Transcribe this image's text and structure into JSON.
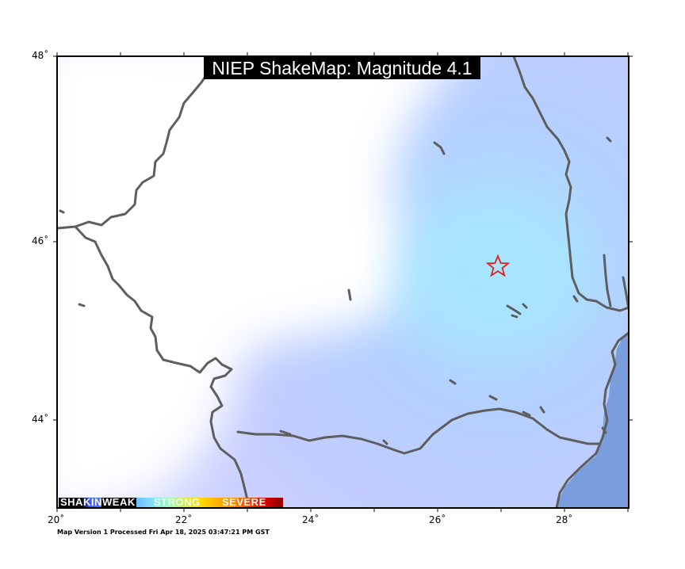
{
  "map": {
    "title": "NIEP ShakeMap: Magnitude 4.1",
    "x_ticks": [
      "20˚",
      "22˚",
      "24˚",
      "26˚",
      "28˚"
    ],
    "y_ticks": [
      "48˚",
      "46˚",
      "44˚"
    ],
    "footer": "Map Version 1 Processed Fri Apr 18, 2025 03:47:21 PM GST",
    "legend": {
      "shaking": "SHAKING",
      "weak": "WEAK",
      "strong": "STRONG",
      "severe": "SEVERE"
    },
    "epicenter_marker": "star-icon",
    "colors": {
      "sea": "#7a9edd",
      "border": "#5e5e5e",
      "intensity_light": "#b7c3ff",
      "intensity_center": "#a8e6ff",
      "epicenter": "#e02020"
    }
  }
}
